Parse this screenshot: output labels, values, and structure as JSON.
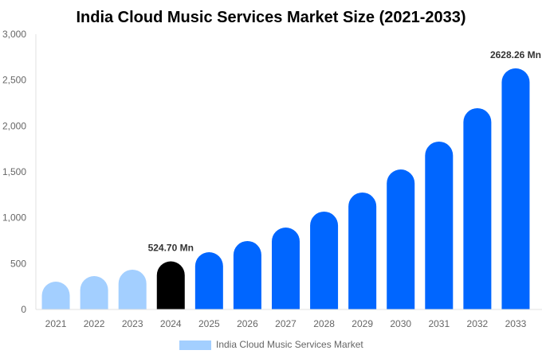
{
  "chart_data": {
    "type": "bar",
    "title": "India Cloud Music Services Market Size (2021-2033)",
    "categories": [
      "2021",
      "2022",
      "2023",
      "2024",
      "2025",
      "2026",
      "2027",
      "2028",
      "2029",
      "2030",
      "2031",
      "2032",
      "2033"
    ],
    "series": [
      {
        "name": "India Cloud Music Services Market",
        "values": [
          303,
          364,
          434,
          524.7,
          624,
          746,
          893,
          1067,
          1275,
          1526,
          1830,
          2194,
          2628.26
        ]
      }
    ],
    "bar_colors": [
      "#a3cfff",
      "#a3cfff",
      "#a3cfff",
      "#000000",
      "#0066ff",
      "#0066ff",
      "#0066ff",
      "#0066ff",
      "#0066ff",
      "#0066ff",
      "#0066ff",
      "#0066ff",
      "#0066ff"
    ],
    "legend_color": "#a3cfff",
    "data_labels": [
      {
        "category": "2024",
        "text": "524.70 Mn"
      },
      {
        "category": "2033",
        "text": "2628.26 Mn"
      }
    ],
    "yticks": [
      "0",
      "500",
      "1,000",
      "1,500",
      "2,000",
      "2,500",
      "3,000"
    ],
    "ylim": [
      0,
      3000
    ],
    "xlabel": "",
    "ylabel": "",
    "grid": false,
    "legend_position": "bottom"
  }
}
